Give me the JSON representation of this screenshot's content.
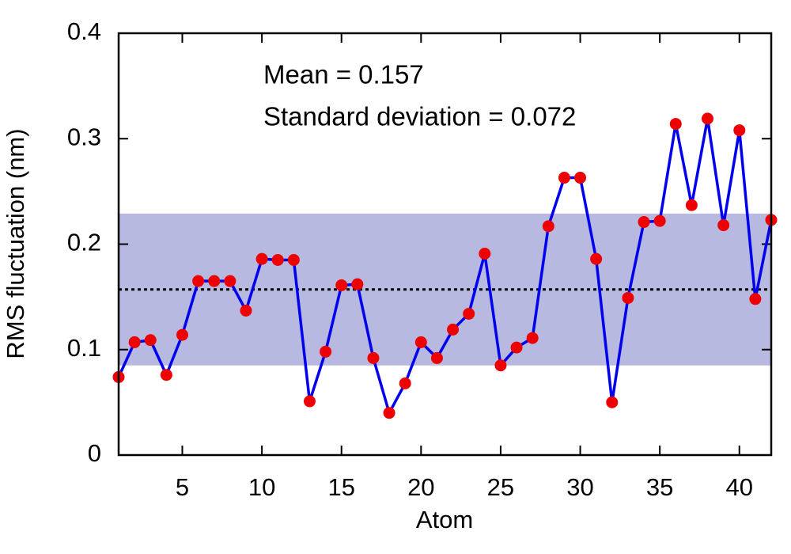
{
  "chart_data": {
    "type": "line",
    "x_label": "Atom",
    "y_label": "RMS fluctuation (nm)",
    "annotations": [
      "Mean = 0.157",
      "Standard deviation = 0.072"
    ],
    "x": [
      1,
      2,
      3,
      4,
      5,
      6,
      7,
      8,
      9,
      10,
      11,
      12,
      13,
      14,
      15,
      16,
      17,
      18,
      19,
      20,
      21,
      22,
      23,
      24,
      25,
      26,
      27,
      28,
      29,
      30,
      31,
      32,
      33,
      34,
      35,
      36,
      37,
      38,
      39,
      40,
      41,
      42
    ],
    "series": [
      {
        "color": "#0000ee",
        "marker_color": "#ee0000",
        "values": [
          0.074,
          0.107,
          0.109,
          0.076,
          0.114,
          0.165,
          0.165,
          0.165,
          0.137,
          0.186,
          0.185,
          0.185,
          0.051,
          0.098,
          0.161,
          0.162,
          0.092,
          0.04,
          0.068,
          0.107,
          0.092,
          0.119,
          0.134,
          0.191,
          0.085,
          0.102,
          0.111,
          0.217,
          0.263,
          0.263,
          0.186,
          0.05,
          0.149,
          0.221,
          0.222,
          0.314,
          0.237,
          0.319,
          0.218,
          0.308,
          0.148,
          0.223
        ]
      }
    ],
    "mean_line": 0.157,
    "band": [
      0.085,
      0.229
    ],
    "band_color": "#b7b9e0",
    "xlim": [
      1,
      42
    ],
    "ylim": [
      0,
      0.4
    ],
    "xticks": [
      5,
      10,
      15,
      20,
      25,
      30,
      35,
      40
    ],
    "yticks": [
      0,
      0.1,
      0.2,
      0.3,
      0.4
    ]
  }
}
